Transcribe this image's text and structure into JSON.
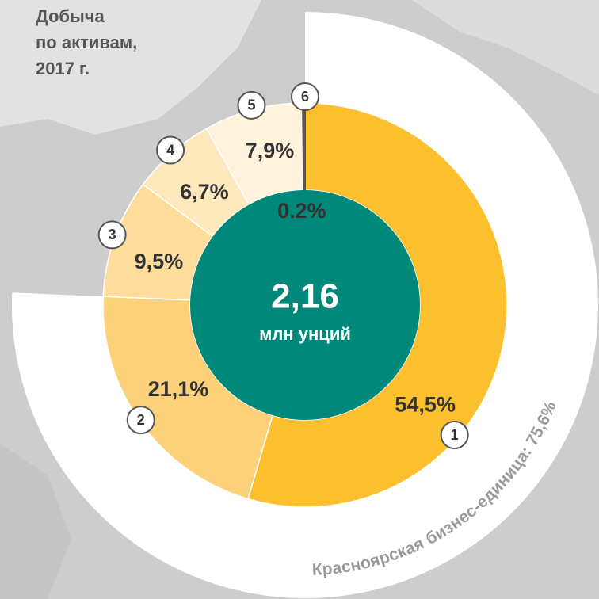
{
  "chart_data": {
    "type": "donut",
    "title": [
      "Добыча",
      "по активам,",
      "2017 г."
    ],
    "categories": [
      "1",
      "2",
      "3",
      "4",
      "5",
      "6"
    ],
    "values": [
      54.5,
      21.1,
      9.5,
      6.7,
      7.9,
      0.2
    ],
    "value_labels": [
      "54,5%",
      "21,1%",
      "9,5%",
      "6,7%",
      "7,9%",
      "0.2%"
    ],
    "colors": [
      "#fcc02e",
      "#fdd07a",
      "#fedd9c",
      "#fee8bd",
      "#fff3dd",
      "#555555"
    ],
    "center_value": "2,16",
    "center_unit": "млн унций",
    "annotation": "Красноярская бизнес-единица: 75,6%"
  }
}
